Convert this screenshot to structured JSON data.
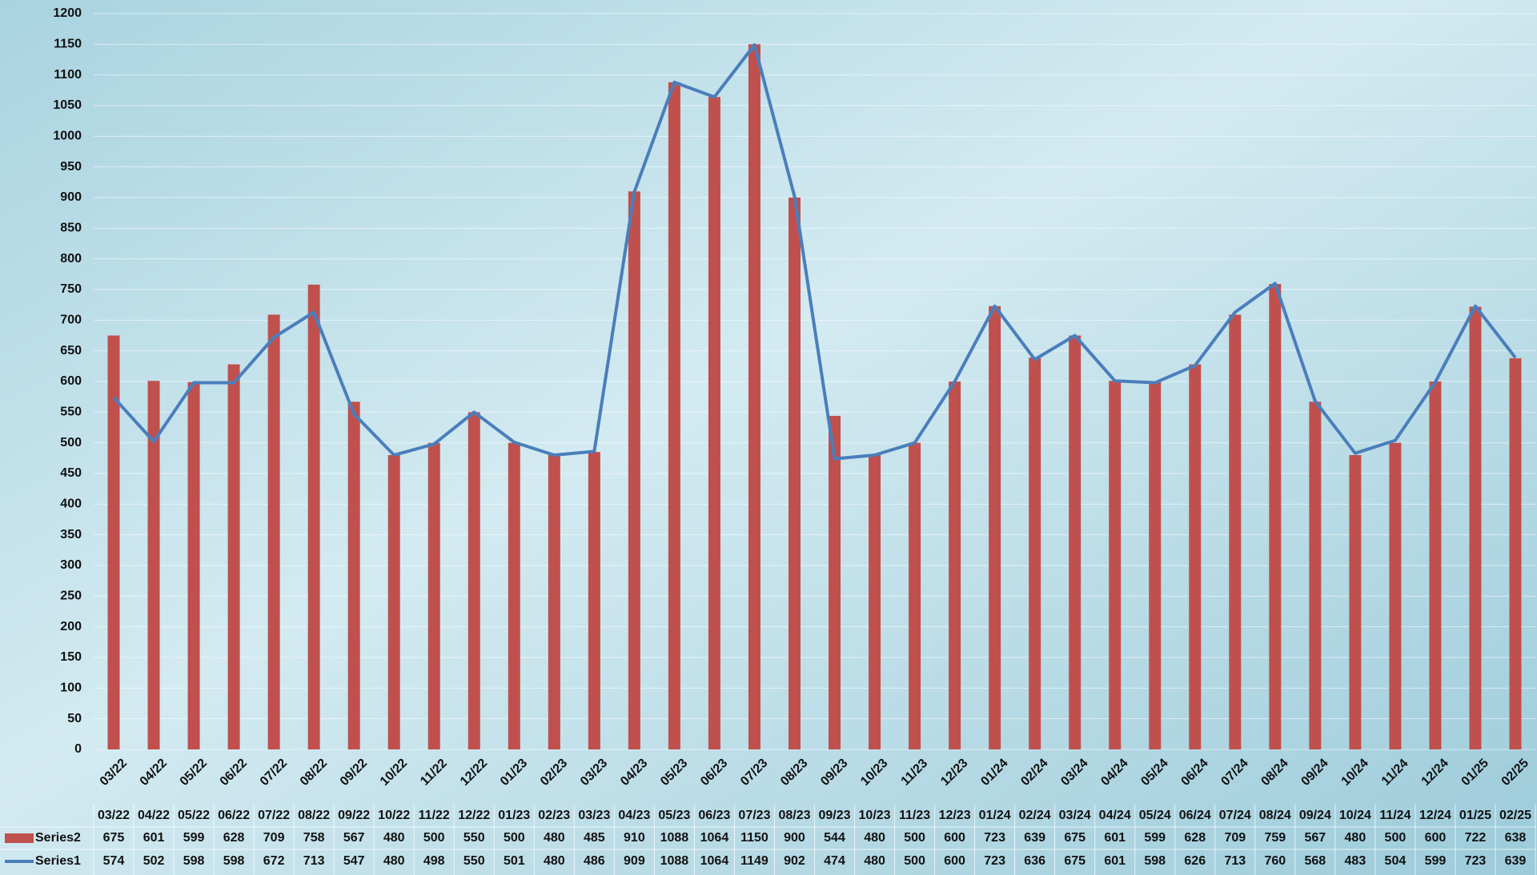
{
  "chart_data": {
    "type": "bar",
    "categories": [
      "03/22",
      "04/22",
      "05/22",
      "06/22",
      "07/22",
      "08/22",
      "09/22",
      "10/22",
      "11/22",
      "12/22",
      "01/23",
      "02/23",
      "03/23",
      "04/23",
      "05/23",
      "06/23",
      "07/23",
      "08/23",
      "09/23",
      "10/23",
      "11/23",
      "12/23",
      "01/24",
      "02/24",
      "03/24",
      "04/24",
      "05/24",
      "06/24",
      "07/24",
      "08/24",
      "09/24",
      "10/24",
      "11/24",
      "12/24",
      "01/25",
      "02/25"
    ],
    "series": [
      {
        "name": "Series2",
        "type": "bar",
        "color": "#c0504d",
        "values": [
          675,
          601,
          599,
          628,
          709,
          758,
          567,
          480,
          500,
          550,
          500,
          480,
          485,
          910,
          1088,
          1064,
          1150,
          900,
          544,
          480,
          500,
          600,
          723,
          639,
          675,
          601,
          599,
          628,
          709,
          759,
          567,
          480,
          500,
          600,
          722,
          638
        ]
      },
      {
        "name": "Series1",
        "type": "line",
        "color": "#4a7ebb",
        "values": [
          574,
          502,
          598,
          598,
          672,
          713,
          547,
          480,
          498,
          550,
          501,
          480,
          486,
          909,
          1088,
          1064,
          1149,
          902,
          474,
          480,
          500,
          600,
          723,
          636,
          675,
          601,
          598,
          626,
          713,
          760,
          568,
          483,
          504,
          599,
          723,
          639
        ]
      }
    ],
    "ylim": [
      0,
      1200
    ],
    "yticks": [
      0,
      50,
      100,
      150,
      200,
      250,
      300,
      350,
      400,
      450,
      500,
      550,
      600,
      650,
      700,
      750,
      800,
      850,
      900,
      950,
      1000,
      1050,
      1100,
      1150,
      1200
    ],
    "grid": true,
    "data_table": true
  }
}
